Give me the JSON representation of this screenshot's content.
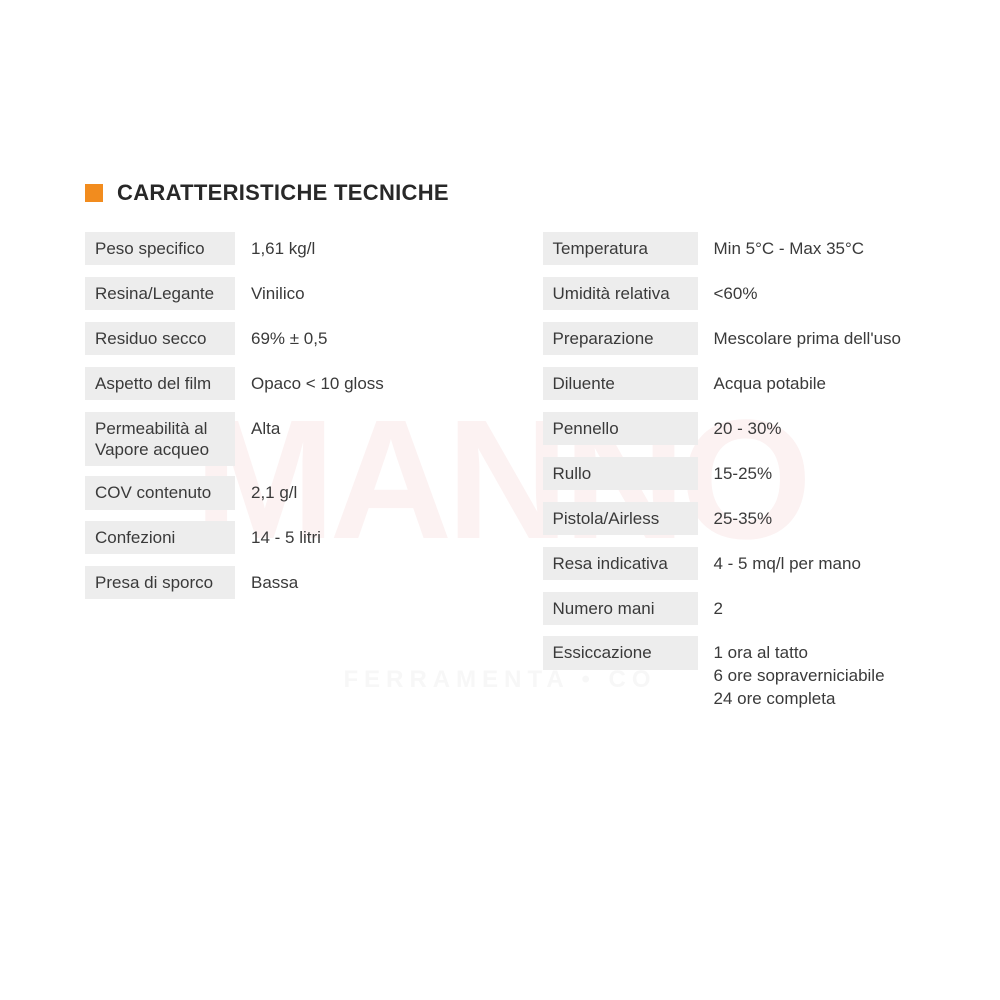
{
  "title": "CARATTERISTICHE TECNICHE",
  "watermark": "MANNO",
  "watermark_sub": "FERRAMENTA • CO",
  "colors": {
    "bullet": "#f28c1e",
    "label_bg": "#ededed",
    "text": "#3a3a3a",
    "title": "#282828",
    "background": "#ffffff"
  },
  "left_column": [
    {
      "label": "Peso specifico",
      "value": "1,61 kg/l"
    },
    {
      "label": "Resina/Legante",
      "value": "Vinilico"
    },
    {
      "label": "Residuo secco",
      "value": "69% ± 0,5"
    },
    {
      "label": "Aspetto del film",
      "value": "Opaco  < 10 gloss"
    },
    {
      "label": "Permeabilità al Vapore acqueo",
      "value": "Alta"
    },
    {
      "label": "COV contenuto",
      "value": "2,1 g/l"
    },
    {
      "label": "Confezioni",
      "value": "14 - 5 litri"
    },
    {
      "label": "Presa di sporco",
      "value": "Bassa"
    }
  ],
  "right_column": [
    {
      "label": "Temperatura",
      "value": "Min 5°C - Max 35°C"
    },
    {
      "label": "Umidità relativa",
      "value": "<60%"
    },
    {
      "label": "Preparazione",
      "value": "Mescolare prima dell'uso"
    },
    {
      "label": "Diluente",
      "value": "Acqua potabile"
    },
    {
      "label": "Pennello",
      "value": "20 - 30%"
    },
    {
      "label": "Rullo",
      "value": "15-25%"
    },
    {
      "label": "Pistola/Airless",
      "value": "25-35%"
    },
    {
      "label": "Resa indicativa",
      "value": "4 - 5 mq/l per mano"
    },
    {
      "label": "Numero mani",
      "value": "2"
    },
    {
      "label": "Essiccazione",
      "value": "1 ora al tatto\n6 ore sopraverniciabile\n24 ore completa"
    }
  ]
}
